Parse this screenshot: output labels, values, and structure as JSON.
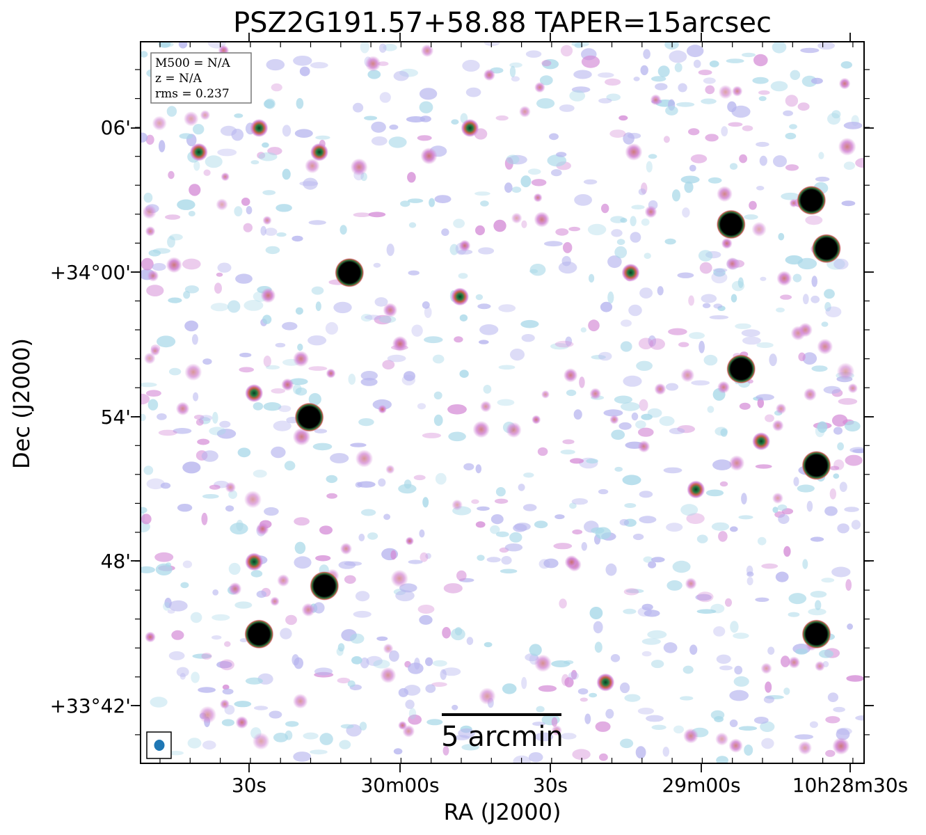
{
  "figure": {
    "title": "PSZ2G191.57+58.88 TAPER=15arcsec",
    "info_lines": [
      "M500 = N/A",
      "z = N/A",
      "rms = 0.237"
    ],
    "xlabel": "RA (J2000)",
    "ylabel": "Dec (J2000)",
    "ra_tick_labels": [
      "30s",
      "30m00s",
      "30s",
      "29m00s",
      "10h28m30s"
    ],
    "dec_tick_labels": [
      "06'",
      "+34°00'",
      "54'",
      "48'",
      "+33°42'"
    ],
    "scalebar_label": "5 arcmin",
    "beam_color": "#1f77b4",
    "colors": {
      "noise_low": "#a8d8e8",
      "noise_mid": "#b6b4ee",
      "noise_high": "#d48ad6",
      "source_ring": "#c8604a",
      "source_core": "#1e7a3e",
      "bright_core": "#000000"
    },
    "sources": [
      {
        "ra": "10h30m40s",
        "dec": "+34°05'",
        "kind": "compact"
      },
      {
        "ra": "10h30m28s",
        "dec": "+34°06'",
        "kind": "compact"
      },
      {
        "ra": "10h30m16s",
        "dec": "+34°05'",
        "kind": "compact"
      },
      {
        "ra": "10h29m46s",
        "dec": "+34°06'",
        "kind": "compact"
      },
      {
        "ra": "10h30m10s",
        "dec": "+34°00'",
        "kind": "bright"
      },
      {
        "ra": "10h29m48s",
        "dec": "+33°59'",
        "kind": "compact"
      },
      {
        "ra": "10h29m14s",
        "dec": "+34°00'",
        "kind": "compact"
      },
      {
        "ra": "10h28m54s",
        "dec": "+34°02'",
        "kind": "bright"
      },
      {
        "ra": "10h28m38s",
        "dec": "+34°03'",
        "kind": "bright"
      },
      {
        "ra": "10h28m35s",
        "dec": "+34°01'",
        "kind": "bright"
      },
      {
        "ra": "10h30m18s",
        "dec": "+33°54'",
        "kind": "bright"
      },
      {
        "ra": "10h30m29s",
        "dec": "+33°55'",
        "kind": "compact"
      },
      {
        "ra": "10h28m52s",
        "dec": "+33°56'",
        "kind": "bright"
      },
      {
        "ra": "10h28m48s",
        "dec": "+33°53'",
        "kind": "compact"
      },
      {
        "ra": "10h28m37s",
        "dec": "+33°52'",
        "kind": "bright"
      },
      {
        "ra": "10h29m01s",
        "dec": "+33°51'",
        "kind": "compact"
      },
      {
        "ra": "10h30m29s",
        "dec": "+33°48'",
        "kind": "compact"
      },
      {
        "ra": "10h30m15s",
        "dec": "+33°47'",
        "kind": "bright"
      },
      {
        "ra": "10h30m28s",
        "dec": "+33°45'",
        "kind": "bright"
      },
      {
        "ra": "10h28m37s",
        "dec": "+33°45'",
        "kind": "bright"
      },
      {
        "ra": "10h29m19s",
        "dec": "+33°43'",
        "kind": "compact"
      }
    ]
  }
}
